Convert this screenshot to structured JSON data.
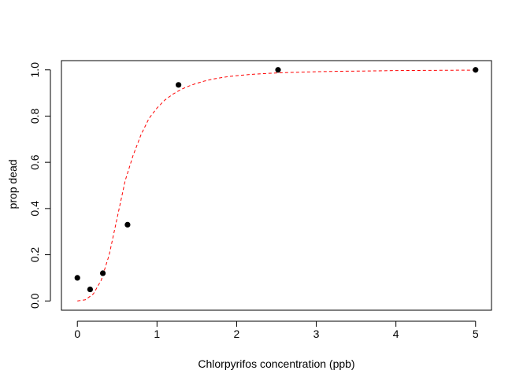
{
  "chart_data": {
    "type": "scatter",
    "xlabel": "Chlorpyrifos concentration (ppb)",
    "ylabel": "prop dead",
    "xlim": [
      -0.2,
      5.2
    ],
    "ylim": [
      -0.04,
      1.04
    ],
    "x_ticks": [
      0,
      1,
      2,
      3,
      4,
      5
    ],
    "y_ticks": [
      0.0,
      0.2,
      0.4,
      0.6,
      0.8,
      1.0
    ],
    "x_tick_labels": [
      "0",
      "1",
      "2",
      "3",
      "4",
      "5"
    ],
    "y_tick_labels": [
      "0.0",
      "0.2",
      "0.4",
      "0.6",
      "0.8",
      "1.0"
    ],
    "grid": false,
    "points": {
      "x": [
        0,
        0.16,
        0.32,
        0.63,
        1.27,
        2.52,
        5.0
      ],
      "y": [
        0.1,
        0.05,
        0.12,
        0.33,
        0.935,
        1.0,
        1.0
      ],
      "color": "#000000"
    },
    "fitted_curve": {
      "style": "dashed",
      "color": "#ff0000",
      "x": [
        0,
        0.1,
        0.2,
        0.3,
        0.4,
        0.5,
        0.6,
        0.7,
        0.8,
        0.9,
        1.0,
        1.1,
        1.2,
        1.3,
        1.4,
        1.5,
        1.6,
        1.7,
        1.8,
        1.9,
        2.0,
        2.2,
        2.4,
        2.6,
        2.8,
        3.0,
        3.3,
        3.6,
        4.0,
        4.5,
        5.0
      ],
      "y": [
        0.0,
        0.005,
        0.03,
        0.09,
        0.2,
        0.36,
        0.52,
        0.63,
        0.72,
        0.79,
        0.835,
        0.87,
        0.895,
        0.915,
        0.93,
        0.942,
        0.952,
        0.96,
        0.966,
        0.971,
        0.975,
        0.981,
        0.985,
        0.988,
        0.99,
        0.992,
        0.994,
        0.995,
        0.997,
        0.998,
        0.999
      ]
    }
  }
}
